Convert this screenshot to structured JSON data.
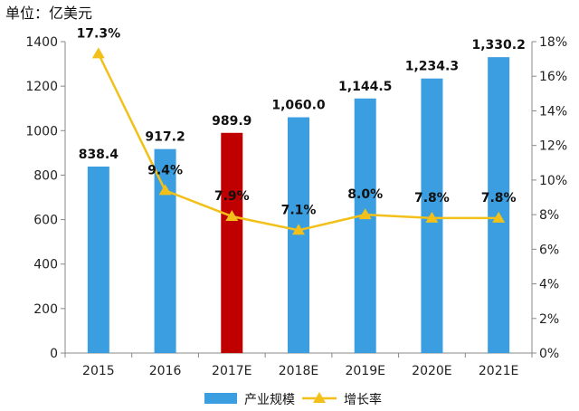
{
  "chart_data": {
    "type": "bar",
    "unit_label": "单位：亿美元",
    "categories": [
      "2015",
      "2016",
      "2017E",
      "2018E",
      "2019E",
      "2020E",
      "2021E"
    ],
    "series": [
      {
        "name": "产业规模",
        "type": "bar",
        "axis": "left",
        "values": [
          838.4,
          917.2,
          989.9,
          1060.0,
          1144.5,
          1234.3,
          1330.2
        ],
        "value_labels": [
          "838.4",
          "917.2",
          "989.9",
          "1,060.0",
          "1,144.5",
          "1,234.3",
          "1,330.2"
        ],
        "color": "#3a9ee0",
        "highlight_index": 2,
        "highlight_color": "#c00000"
      },
      {
        "name": "增长率",
        "type": "line",
        "axis": "right",
        "values": [
          17.3,
          9.4,
          7.9,
          7.1,
          8.0,
          7.8,
          7.8
        ],
        "value_labels": [
          "17.3%",
          "9.4%",
          "7.9%",
          "7.1%",
          "8.0%",
          "7.8%",
          "7.8%"
        ],
        "color": "#f2c018"
      }
    ],
    "y_left": {
      "range": [
        0,
        1400
      ],
      "ticks": [
        "0",
        "200",
        "400",
        "600",
        "800",
        "1000",
        "1200",
        "1400"
      ]
    },
    "y_right": {
      "range": [
        0,
        18
      ],
      "ticks": [
        "0%",
        "2%",
        "4%",
        "6%",
        "8%",
        "10%",
        "12%",
        "14%",
        "16%",
        "18%"
      ]
    },
    "grid": false,
    "legend_position": "bottom"
  }
}
